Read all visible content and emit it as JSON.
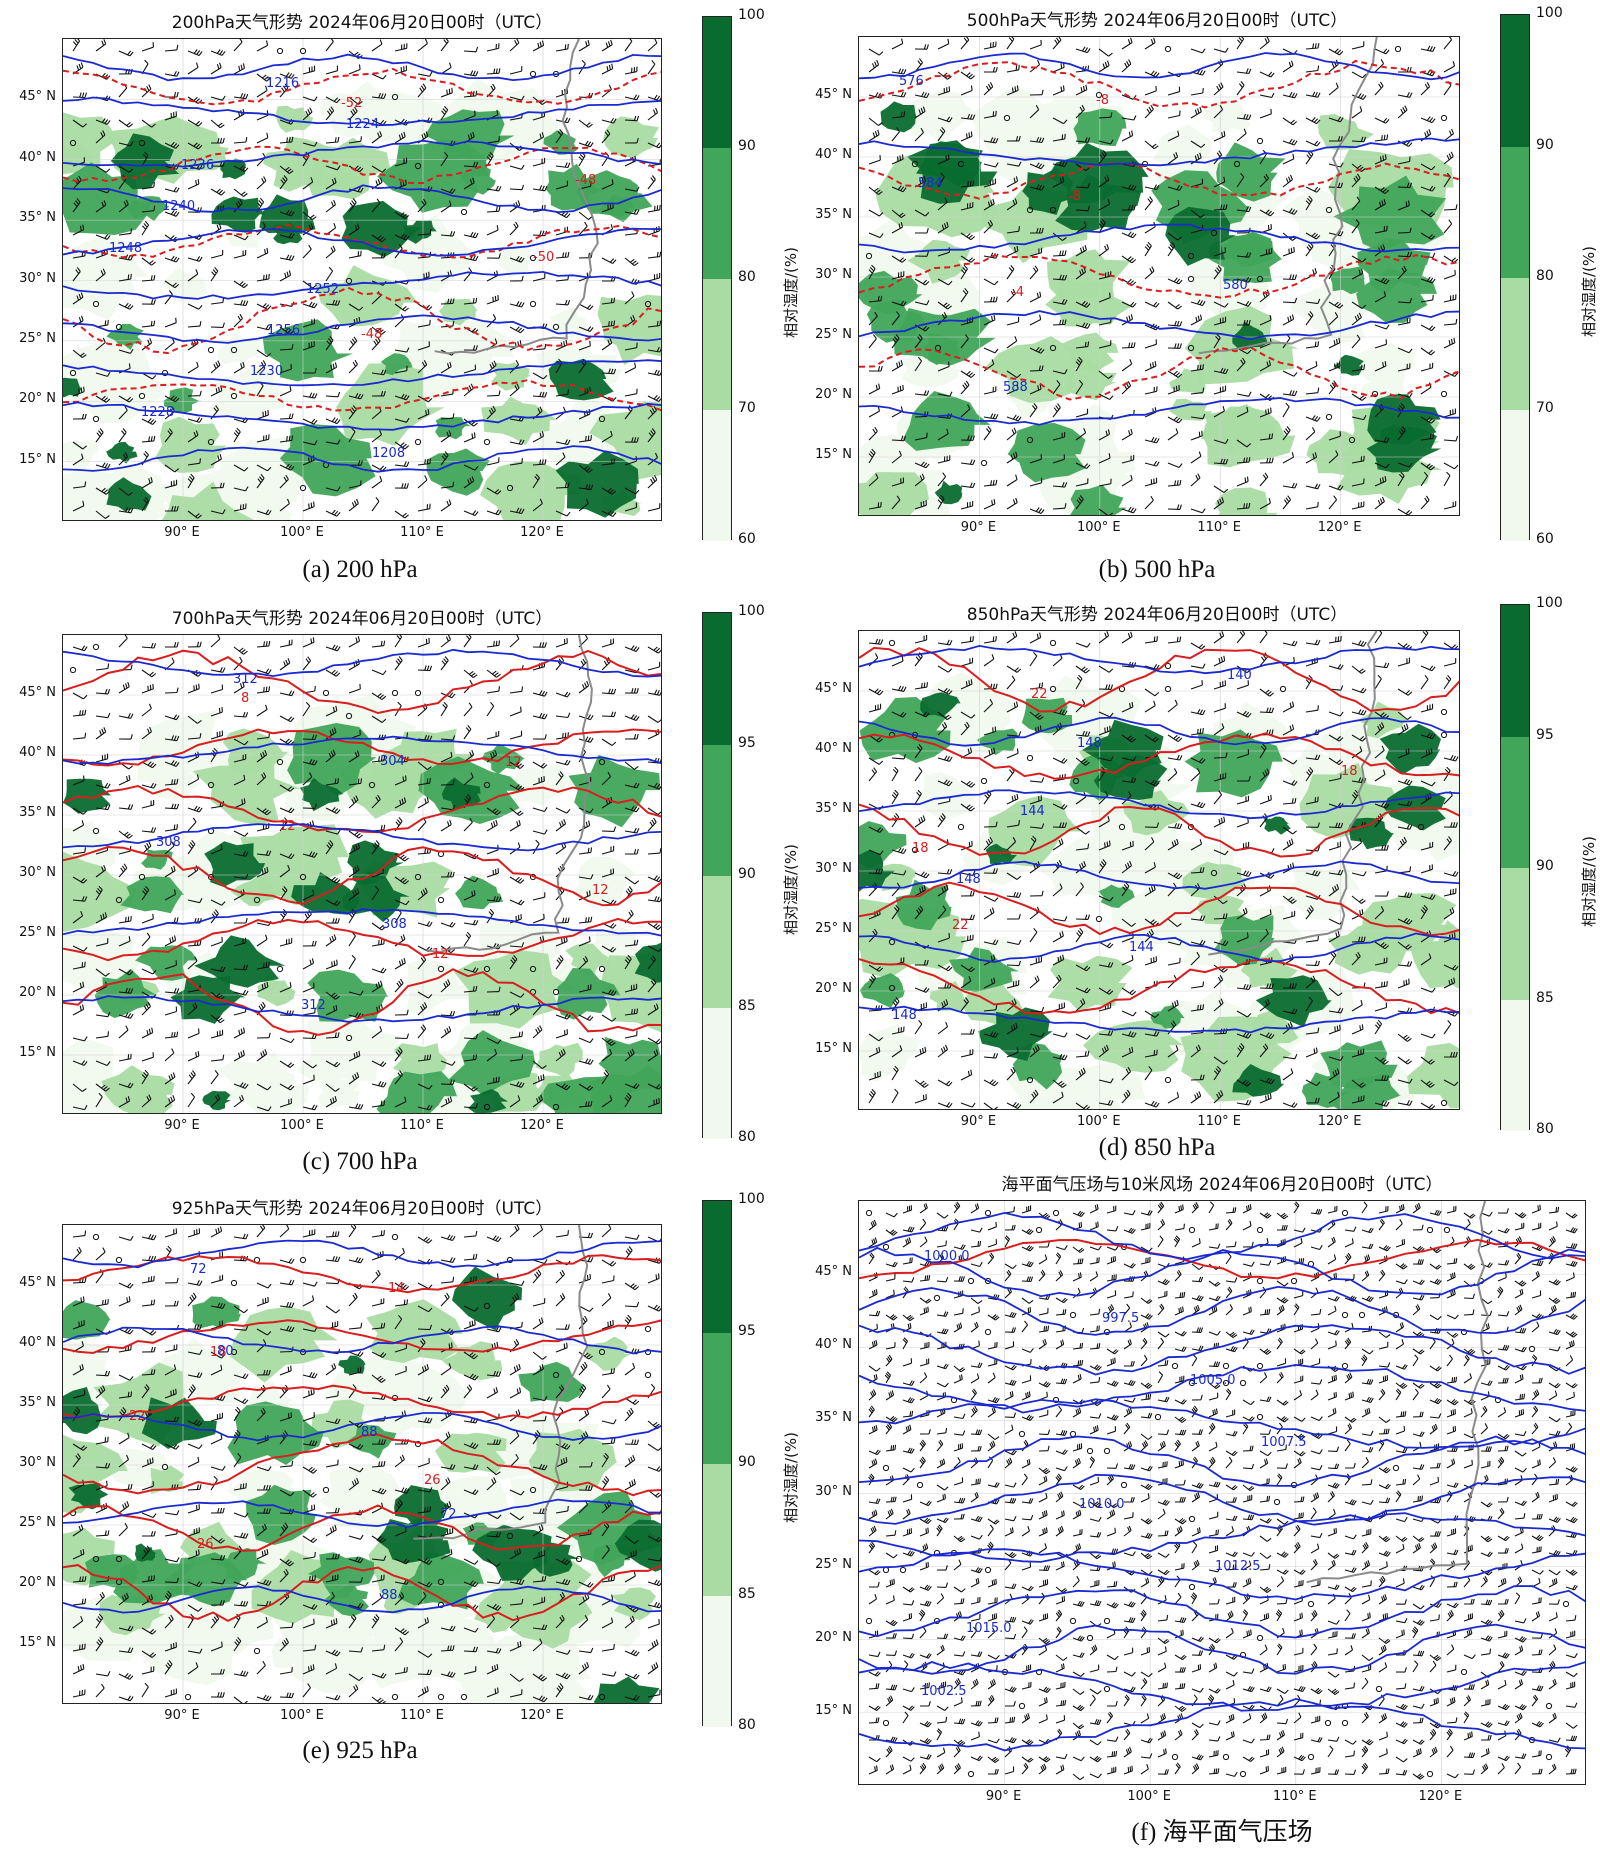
{
  "colors": {
    "rh_bins": [
      "#f1f9ee",
      "#a9dca2",
      "#41a55a",
      "#0a6b2f"
    ],
    "height_contour": "#1a2ad0",
    "temp_contour": "#d81e1e",
    "coastline": "#8a8a8a",
    "wind_barb": "#111111"
  },
  "axes": {
    "lat_ticks": [
      "15° N",
      "20° N",
      "25° N",
      "30° N",
      "35° N",
      "40° N",
      "45° N"
    ],
    "lon_ticks": [
      "90° E",
      "100° E",
      "110° E",
      "120° E"
    ],
    "lat_values": [
      15,
      20,
      25,
      30,
      35,
      40,
      45
    ],
    "lon_values": [
      90,
      100,
      110,
      120
    ],
    "lat_range": [
      10,
      50
    ],
    "lon_range": [
      80,
      130
    ]
  },
  "panels": [
    {
      "id": "a",
      "title": "200hPa天气形势  2024年06月20日00时（UTC）",
      "caption": "(a) 200 hPa",
      "colorbar": {
        "label": "相对湿度/(%)",
        "ticks": [
          "60",
          "70",
          "80",
          "90",
          "100"
        ]
      },
      "height_labels": [
        "1216",
        "1224",
        "1236",
        "1240",
        "1248",
        "1252",
        "1256",
        "1230",
        "1228",
        "1208"
      ],
      "temp_labels": [
        "-52",
        "-48",
        "-50",
        "-48"
      ]
    },
    {
      "id": "b",
      "title": "500hPa天气形势  2024年06月20日00时（UTC）",
      "caption": "(b) 500 hPa",
      "colorbar": {
        "label": "相对湿度/(%)",
        "ticks": [
          "60",
          "70",
          "80",
          "90",
          "100"
        ]
      },
      "height_labels": [
        "576",
        "584",
        "580",
        "588"
      ],
      "temp_labels": [
        "-8",
        "-8",
        "-4"
      ]
    },
    {
      "id": "c",
      "title": "700hPa天气形势  2024年06月20日00时（UTC）",
      "caption": "(c) 700 hPa",
      "colorbar": {
        "label": "相对湿度/(%)",
        "ticks": [
          "80",
          "85",
          "90",
          "95",
          "100"
        ]
      },
      "height_labels": [
        "312",
        "304",
        "308",
        "308",
        "312"
      ],
      "temp_labels": [
        "8",
        "12",
        "12",
        "12",
        "12"
      ]
    },
    {
      "id": "d",
      "title": "850hPa天气形势  2024年06月20日00时（UTC）",
      "caption": "(d) 850 hPa",
      "colorbar": {
        "label": "相对湿度/(%)",
        "ticks": [
          "80",
          "85",
          "90",
          "95",
          "100"
        ]
      },
      "height_labels": [
        "140",
        "148",
        "144",
        "148",
        "144",
        "148"
      ],
      "temp_labels": [
        "22",
        "18",
        "18",
        "22"
      ]
    },
    {
      "id": "e",
      "title": "925hPa天气形势  2024年06月20日00时（UTC）",
      "caption": "(e) 925 hPa",
      "colorbar": {
        "label": "相对湿度/(%)",
        "ticks": [
          "80",
          "85",
          "90",
          "95",
          "100"
        ]
      },
      "height_labels": [
        "72",
        "80",
        "88",
        "72",
        "88"
      ],
      "temp_labels": [
        "14",
        "18",
        "22",
        "26",
        "26"
      ]
    },
    {
      "id": "f",
      "title": "海平面气压场与10米风场  2024年06月20日00时（UTC）",
      "caption": "(f) 海平面气压场",
      "colorbar": null,
      "height_labels": [
        "1000.0",
        "997.5",
        "1005.0",
        "1007.5",
        "1010.0",
        "1012.5",
        "1015.0",
        "1002.5"
      ],
      "temp_labels": []
    }
  ]
}
